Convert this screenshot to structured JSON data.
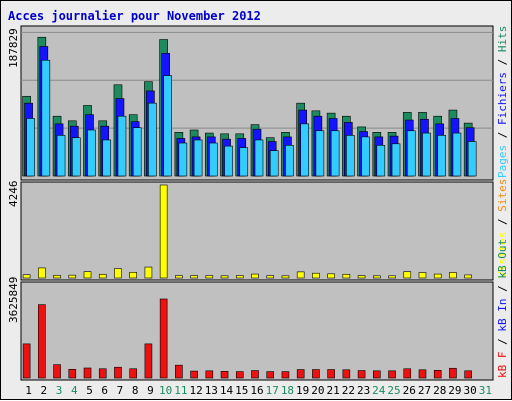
{
  "chart_data": [
    {
      "type": "bar",
      "title": "Acces journalier pour November 2012",
      "ylabel_max": "187829",
      "legend": [
        {
          "name": "Pages",
          "color": "#33ccff"
        },
        {
          "name": "Fichiers",
          "color": "#1414ff"
        },
        {
          "name": "Hits",
          "color": "#1d8a5f"
        }
      ],
      "legend_separator": " / ",
      "categories": [
        "1",
        "2",
        "3",
        "4",
        "5",
        "6",
        "7",
        "8",
        "9",
        "10",
        "11",
        "12",
        "13",
        "14",
        "15",
        "16",
        "17",
        "18",
        "19",
        "20",
        "21",
        "22",
        "23",
        "24",
        "25",
        "26",
        "27",
        "28",
        "29",
        "30",
        "31"
      ],
      "weekend_days": [
        "3",
        "4",
        "10",
        "11",
        "17",
        "18",
        "24",
        "25",
        "31"
      ],
      "ylim": [
        0,
        187829
      ],
      "series": [
        {
          "name": "Hits",
          "values": [
            104000,
            181000,
            78000,
            72000,
            92000,
            72000,
            119000,
            80000,
            123000,
            178000,
            57000,
            60000,
            56000,
            55000,
            55000,
            67000,
            50000,
            57000,
            95000,
            85000,
            82000,
            78000,
            64000,
            57000,
            57000,
            83000,
            83000,
            78000,
            86000,
            69000,
            0
          ]
        },
        {
          "name": "Fichiers",
          "values": [
            95000,
            169000,
            68000,
            65000,
            80000,
            65000,
            101000,
            71000,
            111000,
            160000,
            49000,
            51000,
            51000,
            48000,
            49000,
            61000,
            45000,
            51000,
            86000,
            78000,
            75000,
            70000,
            58000,
            51000,
            52000,
            73000,
            74000,
            68000,
            75000,
            63000,
            0
          ]
        },
        {
          "name": "Pages",
          "values": [
            75000,
            151000,
            53000,
            50000,
            60000,
            47000,
            78000,
            63000,
            95000,
            131000,
            43000,
            47000,
            43000,
            39000,
            37000,
            47000,
            33000,
            40000,
            68000,
            59000,
            59000,
            53000,
            51000,
            40000,
            42000,
            59000,
            56000,
            53000,
            56000,
            45000,
            0
          ]
        }
      ]
    },
    {
      "type": "bar",
      "ylabel_max": "4246",
      "legend": [
        {
          "name": "Visites",
          "color": "#ffff00"
        },
        {
          "name": "Sites",
          "color": "#f38a14"
        }
      ],
      "legend_separator": " / ",
      "ylim": [
        0,
        4246
      ],
      "series": [
        {
          "name": "Visites",
          "values": [
            150,
            460,
            120,
            130,
            290,
            170,
            430,
            260,
            500,
            4246,
            110,
            110,
            110,
            100,
            110,
            180,
            110,
            100,
            280,
            220,
            190,
            170,
            110,
            100,
            100,
            290,
            250,
            180,
            250,
            140,
            0
          ]
        }
      ]
    },
    {
      "type": "bar",
      "ylabel_max": "3625849",
      "legend": [
        {
          "name": "kB F",
          "color": "#ee1111"
        },
        {
          "name": "kB In",
          "color": "#1414ff"
        },
        {
          "name": "kB Out",
          "color": "#1d8a5f"
        }
      ],
      "legend_separator": " / ",
      "ylim": [
        0,
        3625849
      ],
      "series": [
        {
          "name": "kB F",
          "values": [
            1330000,
            2860000,
            520000,
            340000,
            390000,
            360000,
            420000,
            360000,
            1330000,
            3080000,
            500000,
            270000,
            280000,
            260000,
            250000,
            290000,
            250000,
            250000,
            330000,
            330000,
            330000,
            320000,
            290000,
            280000,
            280000,
            360000,
            320000,
            300000,
            380000,
            280000,
            0
          ]
        }
      ]
    }
  ]
}
